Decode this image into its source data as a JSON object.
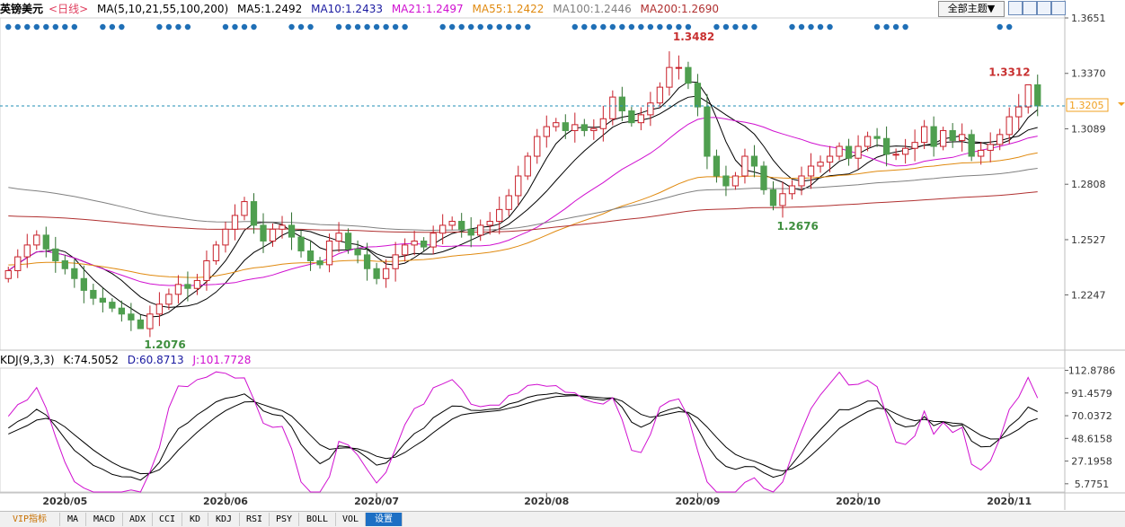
{
  "header": {
    "symbol": "英镑美元",
    "period": "<日线>",
    "ma_params": "MA(5,10,21,55,100,200)",
    "ma5": "MA5:1.2492",
    "ma10": "MA10:1.2433",
    "ma21": "MA21:1.2497",
    "ma55": "MA55:1.2422",
    "ma100": "MA100:1.2446",
    "ma200": "MA200:1.2690"
  },
  "toolbar": {
    "theme_label": "全部主题▼"
  },
  "kdj_header": {
    "params": "KDJ(9,3,3)",
    "k": "K:74.5052",
    "d": "D:60.8713",
    "j": "J:101.7728"
  },
  "tabs": [
    "VIP指标",
    "MA",
    "MACD",
    "ADX",
    "CCI",
    "KD",
    "KDJ",
    "RSI",
    "PSY",
    "BOLL",
    "VOL",
    "设置"
  ],
  "colors": {
    "up": "#c8202a",
    "down": "#4f9f4f",
    "ma5": "#000000",
    "ma10": "#000000",
    "ma21": "#d010d0",
    "ma55": "#e08a10",
    "ma100": "#808080",
    "ma200": "#b03030",
    "k": "#000000",
    "d": "#000000",
    "j": "#d010d0",
    "dots": "#1f6fb6",
    "price_line": "#1f8fb6"
  },
  "chart_data": [
    {
      "type": "candlestick",
      "title": "英镑美元<日线>",
      "x_labels": [
        "2020/05",
        "2020/06",
        "2020/07",
        "2020/08",
        "2020/09",
        "2020/10",
        "2020/11"
      ],
      "y_ticks": [
        "1.3651",
        "1.3370",
        "1.3089",
        "1.2808",
        "1.2527",
        "1.2247"
      ],
      "ylim": [
        1.1967,
        1.3651
      ],
      "current_price": "1.3205",
      "annotations": [
        "1.3482",
        "1.3312",
        "1.2676",
        "1.2076"
      ],
      "annotation_values": [
        1.3482,
        1.3312,
        1.2676,
        1.2076
      ],
      "series": [
        {
          "name": "MA5",
          "end_value": 1.2492
        },
        {
          "name": "MA10",
          "end_value": 1.2433
        },
        {
          "name": "MA21",
          "end_value": 1.2497
        },
        {
          "name": "MA55",
          "end_value": 1.2422
        },
        {
          "name": "MA100",
          "end_value": 1.2446
        },
        {
          "name": "MA200",
          "end_value": 1.269
        }
      ],
      "close_approx": [
        1.237,
        1.244,
        1.25,
        1.255,
        1.248,
        1.242,
        1.238,
        1.233,
        1.227,
        1.223,
        1.221,
        1.218,
        1.215,
        1.212,
        1.2076,
        1.215,
        1.22,
        1.225,
        1.23,
        1.228,
        1.232,
        1.242,
        1.25,
        1.258,
        1.265,
        1.272,
        1.26,
        1.252,
        1.258,
        1.26,
        1.254,
        1.247,
        1.242,
        1.24,
        1.252,
        1.256,
        1.248,
        1.245,
        1.238,
        1.233,
        1.238,
        1.245,
        1.25,
        1.252,
        1.249,
        1.256,
        1.26,
        1.262,
        1.258,
        1.255,
        1.26,
        1.262,
        1.268,
        1.275,
        1.285,
        1.295,
        1.305,
        1.31,
        1.312,
        1.308,
        1.311,
        1.308,
        1.309,
        1.314,
        1.325,
        1.318,
        1.312,
        1.316,
        1.322,
        1.33,
        1.34,
        1.34,
        1.332,
        1.32,
        1.295,
        1.285,
        1.28,
        1.285,
        1.295,
        1.29,
        1.278,
        1.27,
        1.276,
        1.28,
        1.285,
        1.29,
        1.292,
        1.295,
        1.3,
        1.294,
        1.3,
        1.305,
        1.304,
        1.296,
        1.296,
        1.299,
        1.302,
        1.31,
        1.3,
        1.308,
        1.303,
        1.306,
        1.295,
        1.298,
        1.301,
        1.306,
        1.315,
        1.32,
        1.3312,
        1.3205
      ]
    },
    {
      "type": "line",
      "title": "KDJ(9,3,3)",
      "y_ticks": [
        "112.8786",
        "91.4579",
        "70.0372",
        "48.6158",
        "27.1958",
        "5.7751"
      ],
      "ylim": [
        -2.0,
        115.0
      ],
      "series": [
        {
          "name": "K",
          "end_value": 74.5052
        },
        {
          "name": "D",
          "end_value": 60.8713
        },
        {
          "name": "J",
          "end_value": 101.7728
        }
      ]
    }
  ]
}
